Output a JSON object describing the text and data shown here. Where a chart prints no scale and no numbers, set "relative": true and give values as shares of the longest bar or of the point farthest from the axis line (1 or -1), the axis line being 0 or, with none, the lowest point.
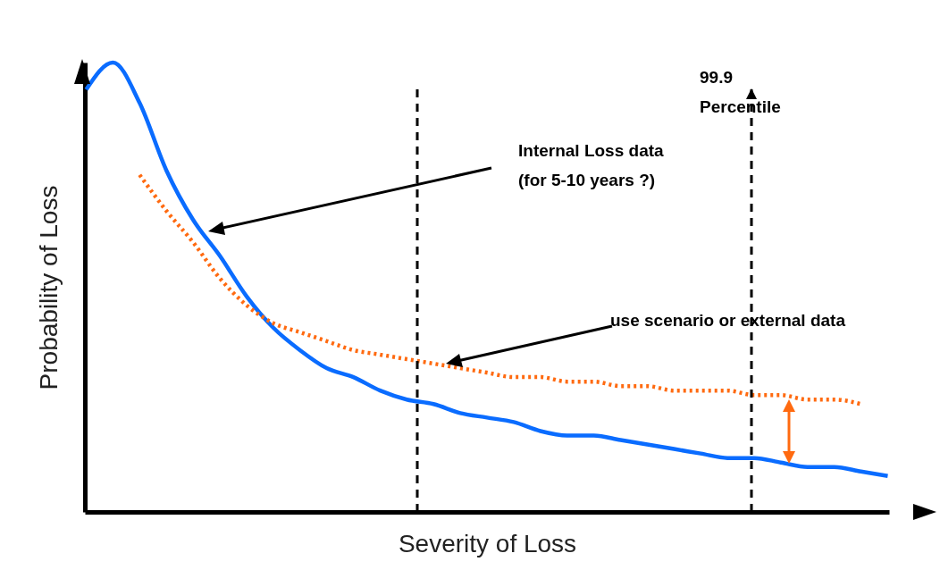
{
  "chart_data": {
    "type": "line",
    "relative": true,
    "xlabel": "Severity of Loss",
    "ylabel": "Probability of Loss",
    "categories": [
      null,
      null,
      null,
      null,
      null,
      null,
      null,
      null,
      null,
      null,
      null,
      null,
      null,
      null,
      null,
      null,
      null,
      null,
      null,
      null,
      null,
      null,
      null,
      null,
      null,
      null,
      null,
      null,
      null,
      null,
      null
    ],
    "series": [
      {
        "color": "#0a6cff",
        "line_style": "solid",
        "values": [
          0.94,
          1.0,
          0.91,
          0.76,
          0.65,
          0.57,
          0.48,
          0.41,
          0.36,
          0.32,
          0.3,
          0.27,
          0.25,
          0.24,
          0.22,
          0.21,
          0.2,
          0.18,
          0.17,
          0.17,
          0.16,
          0.15,
          0.14,
          0.13,
          0.12,
          0.12,
          0.11,
          0.1,
          0.1,
          0.09,
          0.08
        ]
      },
      {
        "color": "#ff6a10",
        "line_style": "dotted",
        "values": [
          null,
          null,
          0.75,
          0.67,
          0.6,
          0.52,
          0.46,
          0.42,
          0.4,
          0.38,
          0.36,
          0.35,
          0.34,
          0.33,
          0.32,
          0.31,
          0.3,
          0.3,
          0.29,
          0.29,
          0.28,
          0.28,
          0.27,
          0.27,
          0.27,
          0.26,
          0.26,
          0.25,
          0.25,
          0.24,
          null
        ]
      }
    ],
    "annotations": [
      "Internal Loss data\n(for 5-10 years ?)",
      "use scenario or external data",
      "99.9\nPercentile"
    ]
  }
}
